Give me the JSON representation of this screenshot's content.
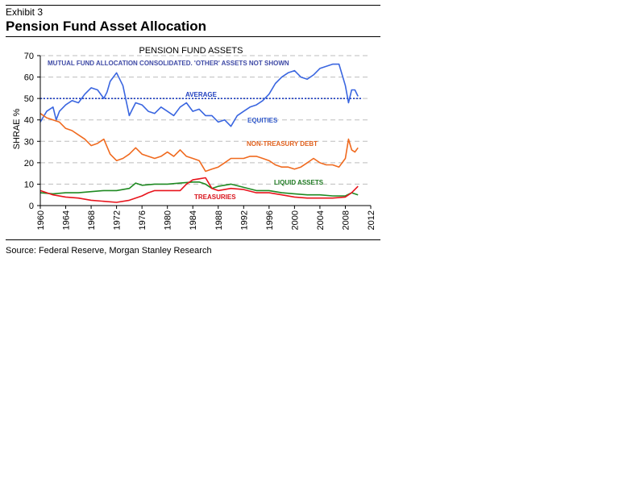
{
  "exhibit": {
    "label": "Exhibit 3",
    "title": "Pension Fund Asset Allocation",
    "source": "Source: Federal Reserve, Morgan Stanley Research"
  },
  "chart_data": {
    "type": "line",
    "title": "PENSION FUND ASSETS",
    "note": "MUTUAL FUND ALLOCATION CONSOLIDATED. 'OTHER' ASSETS NOT SHOWN",
    "ylabel": "SHRAE %",
    "xlabel": "",
    "xlim": [
      1960,
      2012
    ],
    "ylim": [
      0,
      70
    ],
    "x_ticks": [
      1960,
      1964,
      1968,
      1972,
      1976,
      1980,
      1984,
      1988,
      1992,
      1996,
      2000,
      2004,
      2008,
      2012
    ],
    "y_ticks": [
      0,
      10,
      20,
      30,
      40,
      50,
      60,
      70
    ],
    "gridlines": "horizontal dashed",
    "reference_line": {
      "name": "AVERAGE",
      "value": 50,
      "color": "#1f3fbf"
    },
    "series": [
      {
        "name": "EQUITIES",
        "color": "#3a66e0",
        "x": [
          1960,
          1961,
          1962,
          1962.5,
          1963,
          1964,
          1965,
          1966,
          1967,
          1968,
          1969,
          1970,
          1970.5,
          1971,
          1972,
          1973,
          1974,
          1974.5,
          1975,
          1976,
          1977,
          1978,
          1979,
          1980,
          1981,
          1982,
          1983,
          1984,
          1985,
          1986,
          1987,
          1988,
          1989,
          1990,
          1991,
          1992,
          1993,
          1994,
          1995,
          1996,
          1997,
          1998,
          1999,
          2000,
          2001,
          2002,
          2003,
          2004,
          2005,
          2006,
          2007,
          2008,
          2008.5,
          2009,
          2009.5,
          2010
        ],
        "values": [
          39,
          44,
          46,
          40,
          44,
          47,
          49,
          48,
          52,
          55,
          54,
          50,
          53,
          58,
          62,
          56,
          42,
          45,
          48,
          47,
          44,
          43,
          46,
          44,
          42,
          46,
          48,
          44,
          45,
          42,
          42,
          39,
          40,
          37,
          42,
          44,
          46,
          47,
          49,
          52,
          57,
          60,
          62,
          63,
          60,
          59,
          61,
          64,
          65,
          66,
          66,
          56,
          48,
          54,
          54,
          51
        ]
      },
      {
        "name": "NON-TREASURY DEBT",
        "color": "#f06a1f",
        "x": [
          1960,
          1961,
          1962,
          1963,
          1964,
          1965,
          1966,
          1967,
          1968,
          1969,
          1970,
          1971,
          1972,
          1973,
          1974,
          1975,
          1976,
          1977,
          1978,
          1979,
          1980,
          1981,
          1982,
          1983,
          1984,
          1985,
          1986,
          1987,
          1988,
          1989,
          1990,
          1991,
          1992,
          1993,
          1994,
          1995,
          1996,
          1997,
          1998,
          1999,
          2000,
          2001,
          2002,
          2003,
          2004,
          2005,
          2006,
          2007,
          2008,
          2008.5,
          2009,
          2009.5,
          2010
        ],
        "values": [
          43,
          41,
          40,
          39,
          36,
          35,
          33,
          31,
          28,
          29,
          31,
          24,
          21,
          22,
          24,
          27,
          24,
          23,
          22,
          23,
          25,
          23,
          26,
          23,
          22,
          21,
          16,
          17,
          18,
          20,
          22,
          22,
          22,
          23,
          23,
          22,
          21,
          19,
          18,
          18,
          17,
          18,
          20,
          22,
          20,
          19,
          19,
          18,
          22,
          31,
          26,
          25,
          27
        ]
      },
      {
        "name": "LIQUID ASSETS",
        "color": "#1f8a22",
        "x": [
          1960,
          1962,
          1964,
          1966,
          1968,
          1970,
          1972,
          1974,
          1975,
          1976,
          1978,
          1980,
          1982,
          1984,
          1985,
          1986,
          1987,
          1988,
          1990,
          1992,
          1994,
          1996,
          1998,
          2000,
          2002,
          2004,
          2006,
          2008,
          2009,
          2010
        ],
        "values": [
          6,
          5.5,
          6,
          6,
          6.5,
          7,
          7,
          8,
          10.5,
          9.5,
          10,
          10,
          10.5,
          11,
          11,
          10,
          8,
          9,
          10,
          8.5,
          7,
          7,
          6,
          5.5,
          5,
          5,
          4.5,
          4.5,
          6,
          5
        ]
      },
      {
        "name": "TREASURIES",
        "color": "#e8141c",
        "x": [
          1960,
          1962,
          1964,
          1966,
          1968,
          1970,
          1972,
          1974,
          1976,
          1977,
          1978,
          1980,
          1982,
          1983,
          1984,
          1985,
          1986,
          1987,
          1988,
          1990,
          1992,
          1994,
          1996,
          1998,
          2000,
          2002,
          2004,
          2006,
          2008,
          2009,
          2010
        ],
        "values": [
          7,
          5,
          4,
          3.5,
          2.5,
          2,
          1.5,
          2.5,
          4.5,
          6,
          7,
          7,
          7,
          10,
          12,
          12.5,
          13,
          8,
          7,
          8,
          7.5,
          6,
          6,
          5,
          4,
          3.5,
          3.5,
          3.5,
          4,
          6,
          9
        ]
      }
    ],
    "labels": [
      {
        "text": "EQUITIES",
        "color": "#2e57c9"
      },
      {
        "text": "NON-TREASURY DEBT",
        "color": "#e0601c"
      },
      {
        "text": "LIQUID ASSETS",
        "color": "#1f7a22"
      },
      {
        "text": "TREASURIES",
        "color": "#d9131c"
      },
      {
        "text": "AVERAGE",
        "color": "#1f3fbf"
      }
    ]
  }
}
